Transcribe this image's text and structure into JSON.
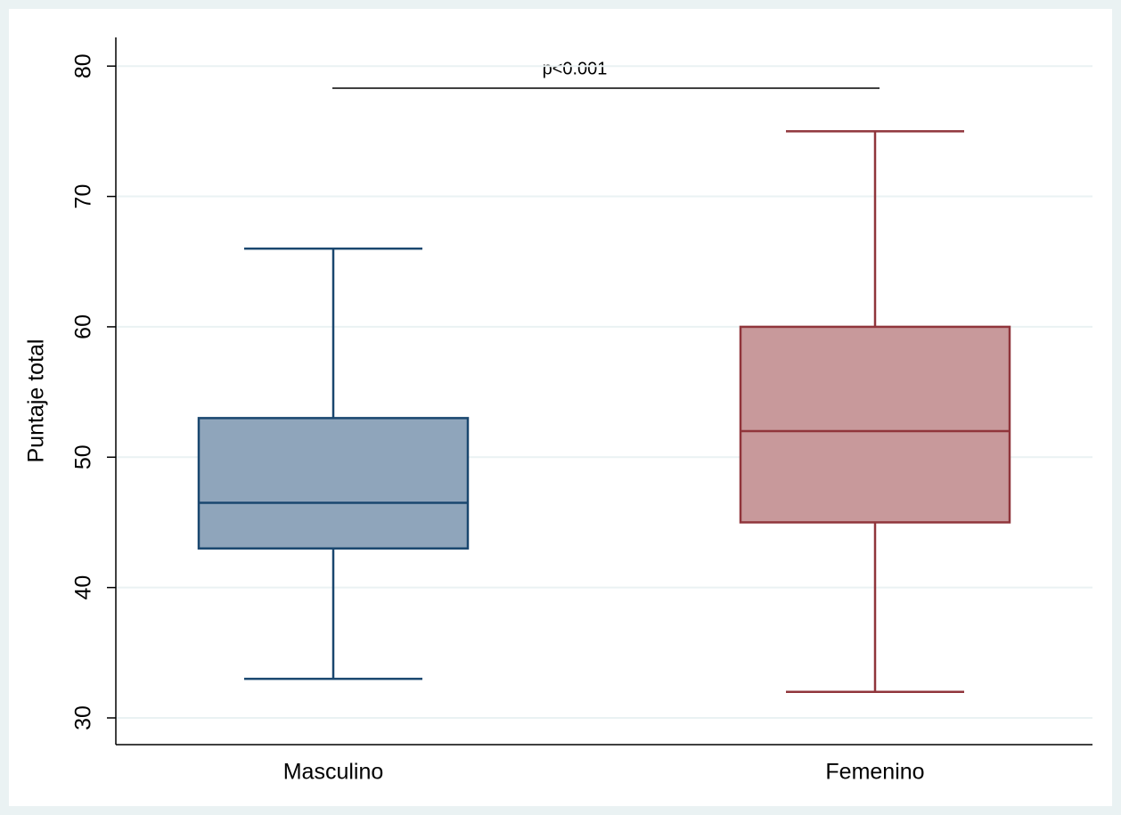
{
  "chart_data": {
    "type": "box",
    "y_label": "Puntaje total",
    "annotation": "p<0.001",
    "annotation_color": "#c0102a",
    "categories": [
      "Masculino",
      "Femenino"
    ],
    "boxes": [
      {
        "whisker_low": 33,
        "q1": 43,
        "median": 46.5,
        "q3": 53,
        "whisker_high": 66,
        "fill": "#8fa5bb",
        "color": "#1a476f"
      },
      {
        "whisker_low": 32,
        "q1": 45,
        "median": 52,
        "q3": 60,
        "whisker_high": 75,
        "fill": "#c8999b",
        "color": "#90353b"
      }
    ],
    "ylim": [
      27.95,
      82.2
    ],
    "yticks": [
      30,
      40,
      50,
      60,
      70,
      80
    ],
    "grid": true
  }
}
